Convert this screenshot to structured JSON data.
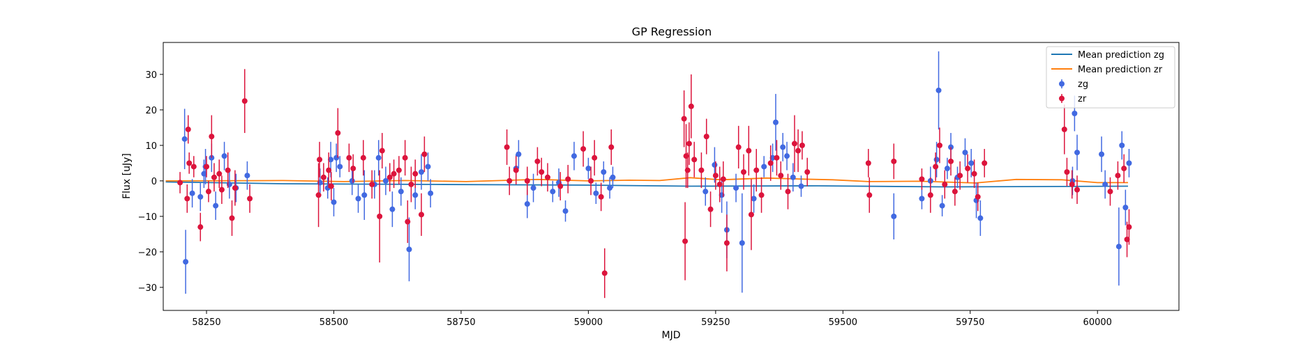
{
  "chart_data": {
    "type": "scatter",
    "title": "GP Regression",
    "xlabel": "MJD",
    "ylabel": "Flux [uJy]",
    "xlim": [
      58165,
      60160
    ],
    "ylim": [
      -36.5,
      39
    ],
    "x_ticks": [
      58250,
      58500,
      58750,
      59000,
      59250,
      59500,
      59750,
      60000
    ],
    "y_ticks": [
      -30,
      -20,
      -10,
      0,
      10,
      20,
      30
    ],
    "grid": false,
    "legend_position": "top-right",
    "mean_lines": [
      {
        "name": "Mean prediction zg",
        "color": "#1f77b4",
        "points": [
          [
            58170,
            -0.3
          ],
          [
            58400,
            -0.8
          ],
          [
            58700,
            -1.0
          ],
          [
            59000,
            -1.2
          ],
          [
            59200,
            -1.5
          ],
          [
            59450,
            -1.4
          ],
          [
            59700,
            -1.7
          ],
          [
            60060,
            -1.5
          ]
        ]
      },
      {
        "name": "Mean prediction zr",
        "color": "#ff7f0e",
        "points": [
          [
            58170,
            0.0
          ],
          [
            58400,
            0.1
          ],
          [
            58520,
            -0.2
          ],
          [
            58640,
            0.1
          ],
          [
            58760,
            -0.2
          ],
          [
            58900,
            0.4
          ],
          [
            59000,
            0.0
          ],
          [
            59080,
            0.2
          ],
          [
            59140,
            0.1
          ],
          [
            59200,
            0.9
          ],
          [
            59260,
            0.3
          ],
          [
            59350,
            0.8
          ],
          [
            59420,
            0.5
          ],
          [
            59480,
            0.3
          ],
          [
            59550,
            -0.2
          ],
          [
            59650,
            -0.1
          ],
          [
            59760,
            -0.6
          ],
          [
            59840,
            0.4
          ],
          [
            59930,
            0.3
          ],
          [
            60000,
            -0.5
          ],
          [
            60060,
            -0.5
          ]
        ]
      }
    ],
    "series": [
      {
        "name": "zg",
        "color": "#4169e1",
        "points": [
          [
            58207,
            11.8,
            8.5
          ],
          [
            58209,
            -22.8,
            9
          ],
          [
            58222,
            -3.5,
            4
          ],
          [
            58238,
            -4.5,
            4
          ],
          [
            58245,
            2,
            4
          ],
          [
            58248,
            4,
            5
          ],
          [
            58260,
            6.5,
            4
          ],
          [
            58268,
            -7,
            4
          ],
          [
            58285,
            7,
            4
          ],
          [
            58295,
            -1,
            4
          ],
          [
            58308,
            -2,
            4
          ],
          [
            58330,
            1.5,
            4
          ],
          [
            58473,
            -0.5,
            4
          ],
          [
            58488,
            -2,
            3
          ],
          [
            58494,
            6,
            5
          ],
          [
            58500,
            -6,
            4
          ],
          [
            58505,
            6.5,
            4
          ],
          [
            58512,
            4,
            3
          ],
          [
            58536,
            0,
            4
          ],
          [
            58548,
            -5,
            4
          ],
          [
            58560,
            -4,
            7
          ],
          [
            58580,
            -1,
            4
          ],
          [
            58588,
            6.5,
            5
          ],
          [
            58602,
            0,
            4
          ],
          [
            58615,
            -8,
            5
          ],
          [
            58632,
            -3,
            4
          ],
          [
            58648,
            -19.3,
            9
          ],
          [
            58660,
            -4,
            4
          ],
          [
            58672,
            2.5,
            5
          ],
          [
            58685,
            4,
            4
          ],
          [
            58690,
            -3.5,
            4
          ],
          [
            58858,
            3.5,
            4
          ],
          [
            58863,
            7.5,
            4
          ],
          [
            58880,
            -6.5,
            4
          ],
          [
            58892,
            -2,
            4
          ],
          [
            58930,
            -3,
            3
          ],
          [
            58942,
            -0.5,
            4
          ],
          [
            58955,
            -8.5,
            3
          ],
          [
            58972,
            7,
            4
          ],
          [
            59000,
            3.5,
            3
          ],
          [
            59015,
            -3.5,
            3
          ],
          [
            59030,
            2.5,
            3
          ],
          [
            59042,
            -2,
            3
          ],
          [
            59048,
            1,
            3
          ],
          [
            59230,
            -3,
            4
          ],
          [
            59248,
            4.5,
            5
          ],
          [
            59262,
            -4,
            5
          ],
          [
            59272,
            -13.8,
            8
          ],
          [
            59290,
            -2,
            4
          ],
          [
            59302,
            -17.5,
            14
          ],
          [
            59325,
            -5,
            4
          ],
          [
            59345,
            4,
            3
          ],
          [
            59362,
            6.5,
            4
          ],
          [
            59368,
            16.5,
            8
          ],
          [
            59382,
            9.5,
            4
          ],
          [
            59390,
            7,
            4
          ],
          [
            59402,
            1,
            4
          ],
          [
            59418,
            -1.5,
            3
          ],
          [
            59600,
            -10,
            6.5
          ],
          [
            59655,
            -5,
            3
          ],
          [
            59672,
            0,
            4
          ],
          [
            59684,
            6,
            5
          ],
          [
            59688,
            25.5,
            11
          ],
          [
            59695,
            -7,
            3
          ],
          [
            59705,
            3.5,
            3
          ],
          [
            59712,
            9.5,
            4
          ],
          [
            59725,
            1,
            3
          ],
          [
            59740,
            8,
            4
          ],
          [
            59752,
            5,
            4
          ],
          [
            59762,
            -5.5,
            5
          ],
          [
            59770,
            -10.5,
            5
          ],
          [
            59951,
            0,
            4
          ],
          [
            59955,
            19,
            5
          ],
          [
            59960,
            8,
            5
          ],
          [
            60008,
            7.5,
            5
          ],
          [
            60015,
            -1,
            4
          ],
          [
            60042,
            -18.5,
            11
          ],
          [
            60048,
            10,
            4
          ],
          [
            60055,
            -7.5,
            5
          ],
          [
            60062,
            5,
            4
          ]
        ]
      },
      {
        "name": "zr",
        "color": "#dc143c",
        "points": [
          [
            58198,
            -0.5,
            3
          ],
          [
            58212,
            -5,
            4
          ],
          [
            58214,
            14.5,
            4
          ],
          [
            58216,
            5,
            3
          ],
          [
            58225,
            4,
            3
          ],
          [
            58238,
            -13,
            4
          ],
          [
            58250,
            4,
            3
          ],
          [
            58254,
            -3,
            3
          ],
          [
            58260,
            12.5,
            6
          ],
          [
            58265,
            1,
            4
          ],
          [
            58275,
            2,
            4
          ],
          [
            58280,
            -2.5,
            4
          ],
          [
            58292,
            3,
            5
          ],
          [
            58300,
            -10.5,
            5
          ],
          [
            58306,
            -2,
            5
          ],
          [
            58325,
            22.5,
            9
          ],
          [
            58335,
            -5,
            4
          ],
          [
            58470,
            -4,
            9
          ],
          [
            58472,
            6,
            5
          ],
          [
            58480,
            1,
            4
          ],
          [
            58490,
            3,
            5
          ],
          [
            58495,
            -1.5,
            4
          ],
          [
            58508,
            13.5,
            7
          ],
          [
            58530,
            6.5,
            4
          ],
          [
            58538,
            3.5,
            4
          ],
          [
            58558,
            6.5,
            5
          ],
          [
            58575,
            -1,
            4
          ],
          [
            58590,
            -10,
            13
          ],
          [
            58595,
            8.5,
            5
          ],
          [
            58610,
            1,
            4
          ],
          [
            58618,
            2,
            4
          ],
          [
            58628,
            3,
            4
          ],
          [
            58640,
            6.5,
            5
          ],
          [
            58645,
            -11.5,
            6
          ],
          [
            58652,
            -1,
            5
          ],
          [
            58660,
            2,
            4
          ],
          [
            58672,
            -9.5,
            6
          ],
          [
            58678,
            7.5,
            5
          ],
          [
            58840,
            9.5,
            5
          ],
          [
            58845,
            0,
            4
          ],
          [
            58858,
            3,
            4
          ],
          [
            58880,
            0,
            4
          ],
          [
            58900,
            5.5,
            4
          ],
          [
            58908,
            2.5,
            4
          ],
          [
            58920,
            1,
            4
          ],
          [
            58945,
            -1.5,
            4
          ],
          [
            58960,
            0.5,
            4
          ],
          [
            58990,
            9,
            5
          ],
          [
            59005,
            0,
            4
          ],
          [
            59012,
            6.5,
            5
          ],
          [
            59025,
            -4.5,
            4
          ],
          [
            59032,
            -26,
            7
          ],
          [
            59045,
            9.5,
            5
          ],
          [
            59188,
            17.5,
            8
          ],
          [
            59190,
            -17,
            11
          ],
          [
            59192,
            7,
            9
          ],
          [
            59195,
            3,
            5
          ],
          [
            59198,
            10.5,
            6
          ],
          [
            59202,
            21,
            9
          ],
          [
            59208,
            6,
            5
          ],
          [
            59222,
            3,
            5
          ],
          [
            59232,
            12.5,
            5
          ],
          [
            59240,
            -8,
            5
          ],
          [
            59250,
            1.5,
            4
          ],
          [
            59258,
            -1,
            5
          ],
          [
            59265,
            0.5,
            5
          ],
          [
            59272,
            -17.5,
            8
          ],
          [
            59295,
            9.5,
            6
          ],
          [
            59305,
            2.5,
            5
          ],
          [
            59315,
            8.5,
            7
          ],
          [
            59320,
            -9.5,
            10
          ],
          [
            59330,
            3,
            6
          ],
          [
            59340,
            -4,
            5
          ],
          [
            59358,
            5,
            5
          ],
          [
            59370,
            6.5,
            5
          ],
          [
            59378,
            1.5,
            4
          ],
          [
            59392,
            -3,
            5
          ],
          [
            59405,
            10.5,
            8
          ],
          [
            59412,
            8.5,
            6
          ],
          [
            59420,
            10,
            4
          ],
          [
            59430,
            2.5,
            4
          ],
          [
            59550,
            5,
            4
          ],
          [
            59552,
            -4,
            5
          ],
          [
            59600,
            5.5,
            5
          ],
          [
            59655,
            0.5,
            3
          ],
          [
            59672,
            -4,
            5
          ],
          [
            59682,
            4,
            4
          ],
          [
            59690,
            10,
            5
          ],
          [
            59700,
            -1,
            4
          ],
          [
            59712,
            5.5,
            4
          ],
          [
            59720,
            -3,
            4
          ],
          [
            59730,
            1.5,
            4
          ],
          [
            59745,
            3.5,
            4
          ],
          [
            59758,
            2,
            4
          ],
          [
            59765,
            -4.5,
            4
          ],
          [
            59778,
            5,
            4
          ],
          [
            59935,
            14.5,
            7
          ],
          [
            59940,
            2.5,
            4
          ],
          [
            59950,
            -1,
            4
          ],
          [
            59960,
            -2.5,
            4
          ],
          [
            60025,
            -3,
            4
          ],
          [
            60040,
            1.5,
            4
          ],
          [
            60052,
            3.5,
            4
          ],
          [
            60058,
            -16.5,
            5
          ],
          [
            60062,
            -13,
            5
          ]
        ]
      }
    ]
  }
}
